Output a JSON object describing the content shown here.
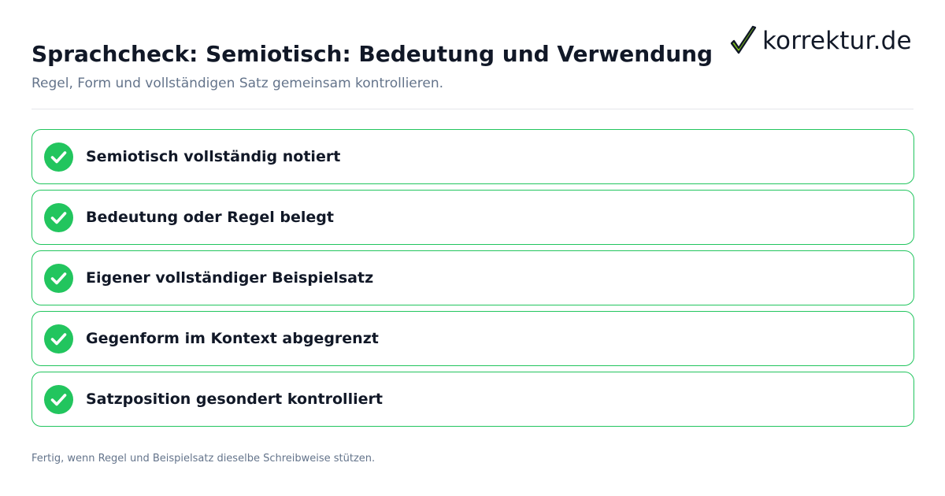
{
  "header": {
    "title": "Sprachcheck: Semiotisch: Bedeutung und Verwendung",
    "subtitle": "Regel, Form und vollständigen Satz gemeinsam kontrollieren."
  },
  "logo": {
    "text": "korrektur.de",
    "icon": "checkmark-icon",
    "check_color": "#84cc16",
    "stroke_color": "#111827"
  },
  "checklist": {
    "items": [
      {
        "label": "Semiotisch vollständig notiert",
        "checked": true,
        "icon": "check-circle-icon"
      },
      {
        "label": "Bedeutung oder Regel belegt",
        "checked": true,
        "icon": "check-circle-icon"
      },
      {
        "label": "Eigener vollständiger Beispielsatz",
        "checked": true,
        "icon": "check-circle-icon"
      },
      {
        "label": "Gegenform im Kontext abgegrenzt",
        "checked": true,
        "icon": "check-circle-icon"
      },
      {
        "label": "Satzposition gesondert kontrolliert",
        "checked": true,
        "icon": "check-circle-icon"
      }
    ]
  },
  "footer": {
    "note": "Fertig, wenn Regel und Beispielsatz dieselbe Schreibweise stützen."
  },
  "colors": {
    "accent_green": "#22c55e",
    "text_dark": "#111827",
    "text_muted": "#64748b",
    "divider": "#e5e7eb"
  }
}
